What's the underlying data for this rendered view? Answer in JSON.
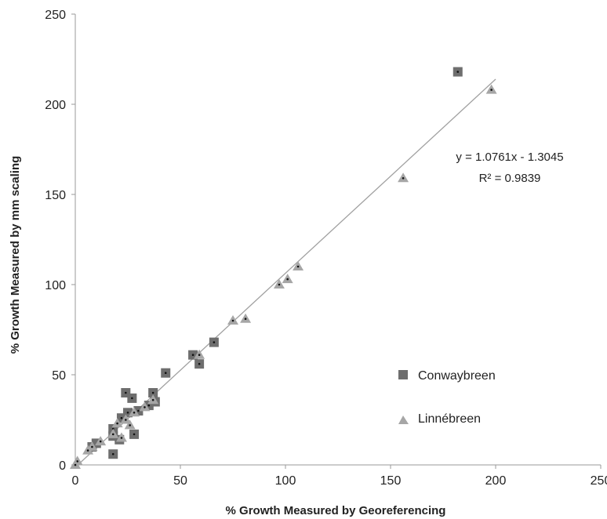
{
  "chart_data": {
    "type": "scatter",
    "xlabel": "% Growth Measured by Georeferencing",
    "ylabel": "% Growth Measured by mm scaling",
    "xlim": [
      0,
      250
    ],
    "ylim": [
      0,
      250
    ],
    "x_ticks": [
      "0",
      "50",
      "100",
      "150",
      "200",
      "250"
    ],
    "y_ticks": [
      "0",
      "50",
      "100",
      "150",
      "200",
      "250"
    ],
    "grid": false,
    "legend_position": "right",
    "series": [
      {
        "name": "Conwaybreen",
        "marker": "square",
        "color": "#6e6e6e",
        "points": [
          {
            "x": 182,
            "y": 218
          },
          {
            "x": 66,
            "y": 68
          },
          {
            "x": 56,
            "y": 61
          },
          {
            "x": 59,
            "y": 56
          },
          {
            "x": 43,
            "y": 51
          },
          {
            "x": 24,
            "y": 40
          },
          {
            "x": 37,
            "y": 40
          },
          {
            "x": 27,
            "y": 37
          },
          {
            "x": 38,
            "y": 35
          },
          {
            "x": 35,
            "y": 33
          },
          {
            "x": 30,
            "y": 30
          },
          {
            "x": 25,
            "y": 29
          },
          {
            "x": 22,
            "y": 26
          },
          {
            "x": 18,
            "y": 20
          },
          {
            "x": 18,
            "y": 16
          },
          {
            "x": 28,
            "y": 17
          },
          {
            "x": 21,
            "y": 14
          },
          {
            "x": 10,
            "y": 12
          },
          {
            "x": 8,
            "y": 10
          },
          {
            "x": 18,
            "y": 6
          }
        ]
      },
      {
        "name": "Linnébreen",
        "marker": "triangle",
        "color": "#a6a6a6",
        "points": [
          {
            "x": 198,
            "y": 208
          },
          {
            "x": 156,
            "y": 159
          },
          {
            "x": 106,
            "y": 110
          },
          {
            "x": 101,
            "y": 103
          },
          {
            "x": 97,
            "y": 100
          },
          {
            "x": 81,
            "y": 81
          },
          {
            "x": 75,
            "y": 80
          },
          {
            "x": 59,
            "y": 61
          },
          {
            "x": 37,
            "y": 36
          },
          {
            "x": 33,
            "y": 32
          },
          {
            "x": 28,
            "y": 29
          },
          {
            "x": 24,
            "y": 25
          },
          {
            "x": 26,
            "y": 22
          },
          {
            "x": 20,
            "y": 23
          },
          {
            "x": 18,
            "y": 17
          },
          {
            "x": 22,
            "y": 15
          },
          {
            "x": 12,
            "y": 13
          },
          {
            "x": 8,
            "y": 10
          },
          {
            "x": 6,
            "y": 8
          },
          {
            "x": 1,
            "y": 2
          },
          {
            "x": 0,
            "y": 0
          }
        ]
      }
    ],
    "trendline": {
      "slope": 1.0761,
      "intercept": -1.3045,
      "x_range": [
        0,
        200
      ],
      "equation": "y = 1.0761x - 1.3045",
      "r_squared": "R² = 0.9839"
    }
  }
}
